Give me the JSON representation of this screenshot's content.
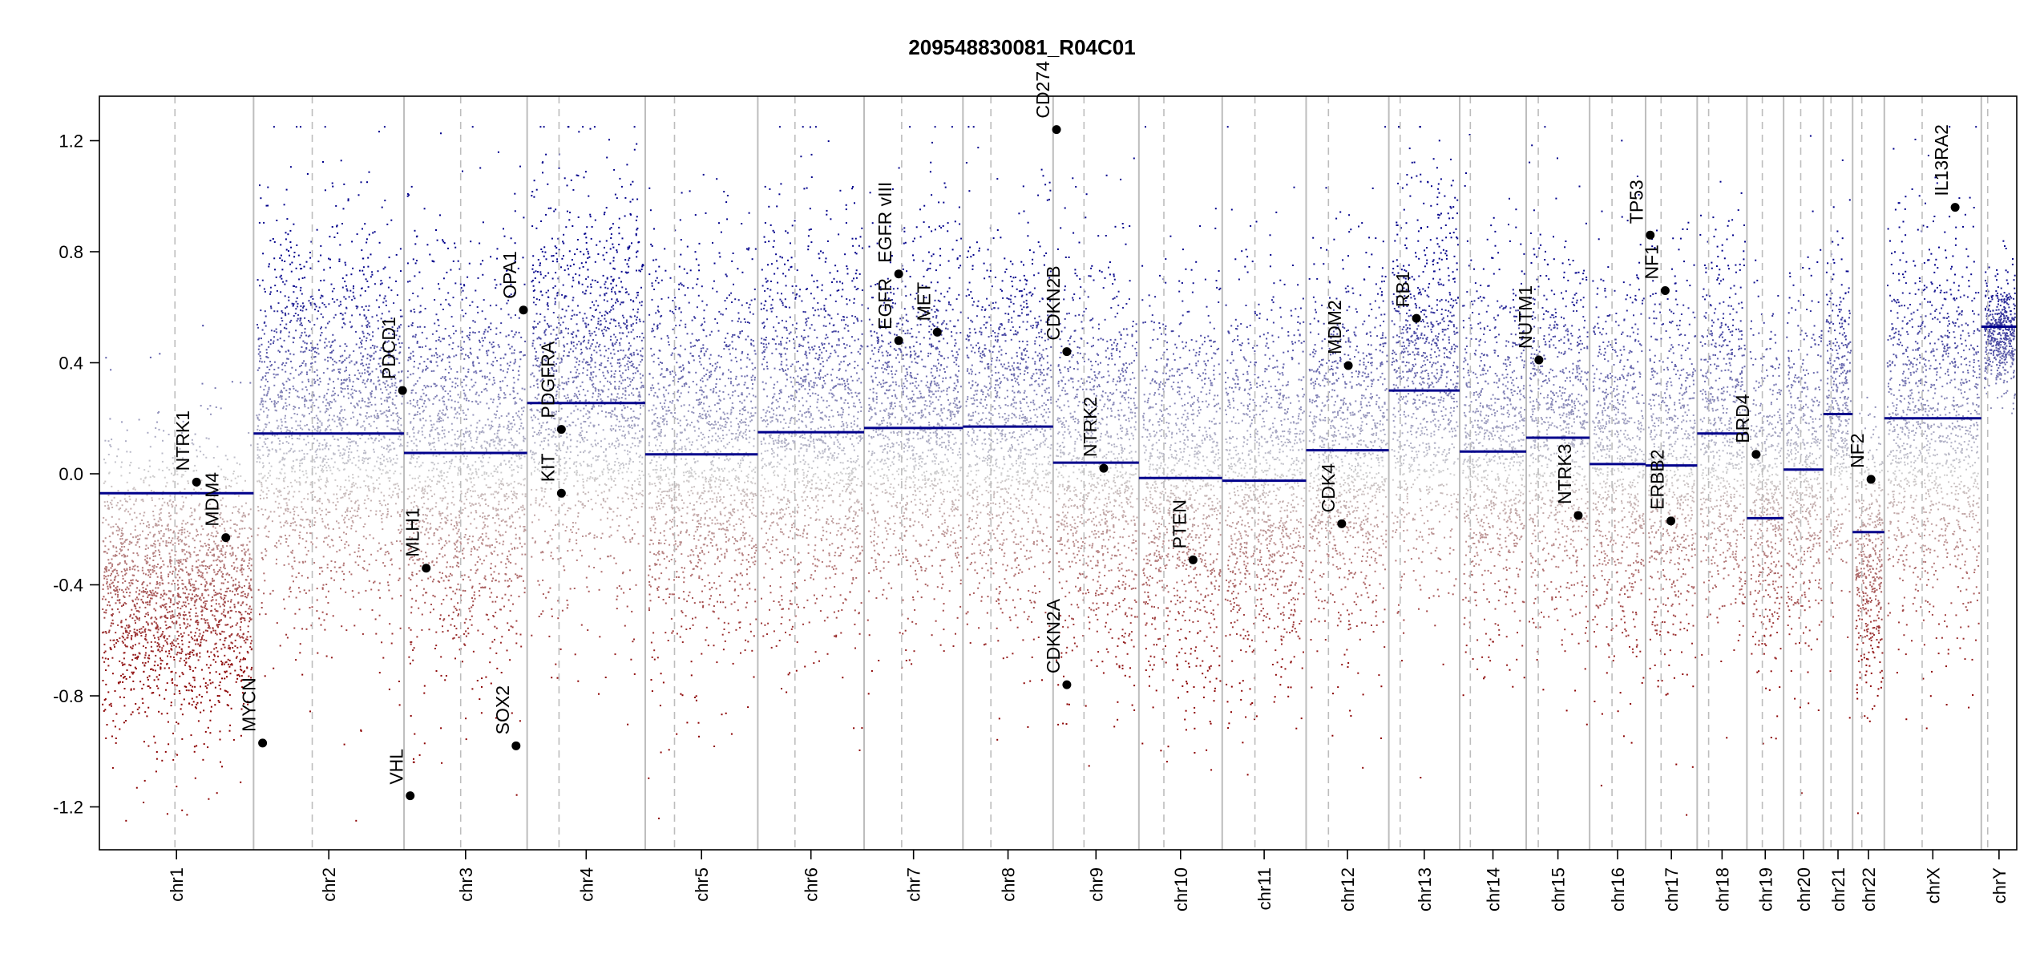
{
  "chart_data": {
    "type": "scatter",
    "title": "209548830081_R04C01",
    "xlabel": "",
    "ylabel": "",
    "ylim": [
      -1.35,
      1.35
    ],
    "yticks": [
      -1.2,
      -0.8,
      -0.4,
      0.0,
      0.4,
      0.8,
      1.2
    ],
    "ytick_labels": [
      "-1.2",
      "-0.8",
      "-0.4",
      "0.0",
      "0.4",
      "0.8",
      "1.2"
    ],
    "grid": false,
    "legend": "none",
    "colors": {
      "gain": "#00008b",
      "loss": "#8b0000",
      "neutral": "#cfcfcf",
      "segment": "#00008b",
      "gene": "#000000",
      "boundary": "#bdbdbd",
      "centromere": "#bdbdbd"
    },
    "chromosomes": [
      {
        "name": "chr1",
        "size": 248,
        "cen": 0.49
      },
      {
        "name": "chr2",
        "size": 242,
        "cen": 0.39
      },
      {
        "name": "chr3",
        "size": 198,
        "cen": 0.46
      },
      {
        "name": "chr4",
        "size": 190,
        "cen": 0.27
      },
      {
        "name": "chr5",
        "size": 181,
        "cen": 0.26
      },
      {
        "name": "chr6",
        "size": 171,
        "cen": 0.35
      },
      {
        "name": "chr7",
        "size": 159,
        "cen": 0.38
      },
      {
        "name": "chr8",
        "size": 145,
        "cen": 0.31
      },
      {
        "name": "chr9",
        "size": 138,
        "cen": 0.36
      },
      {
        "name": "chr10",
        "size": 134,
        "cen": 0.3
      },
      {
        "name": "chr11",
        "size": 135,
        "cen": 0.39
      },
      {
        "name": "chr12",
        "size": 133,
        "cen": 0.27
      },
      {
        "name": "chr13",
        "size": 114,
        "cen": 0.16
      },
      {
        "name": "chr14",
        "size": 107,
        "cen": 0.16
      },
      {
        "name": "chr15",
        "size": 102,
        "cen": 0.19
      },
      {
        "name": "chr16",
        "size": 90,
        "cen": 0.4
      },
      {
        "name": "chr17",
        "size": 83,
        "cen": 0.3
      },
      {
        "name": "chr18",
        "size": 80,
        "cen": 0.23
      },
      {
        "name": "chr19",
        "size": 59,
        "cen": 0.42
      },
      {
        "name": "chr20",
        "size": 64,
        "cen": 0.43
      },
      {
        "name": "chr21",
        "size": 47,
        "cen": 0.26
      },
      {
        "name": "chr22",
        "size": 51,
        "cen": 0.29
      },
      {
        "name": "chrX",
        "size": 156,
        "cen": 0.39
      },
      {
        "name": "chrY",
        "size": 57,
        "cen": 0.18
      }
    ],
    "segments": [
      {
        "chr": "chr1",
        "value": -0.07
      },
      {
        "chr": "chr2",
        "value": 0.145
      },
      {
        "chr": "chr3",
        "value": 0.075
      },
      {
        "chr": "chr4",
        "value": 0.255
      },
      {
        "chr": "chr5",
        "value": 0.07
      },
      {
        "chr": "chr6",
        "value": 0.15
      },
      {
        "chr": "chr7",
        "value": 0.165
      },
      {
        "chr": "chr8",
        "value": 0.17
      },
      {
        "chr": "chr9",
        "value": 0.04
      },
      {
        "chr": "chr10",
        "value": -0.015
      },
      {
        "chr": "chr11",
        "value": -0.025
      },
      {
        "chr": "chr12",
        "value": 0.085
      },
      {
        "chr": "chr13",
        "value": 0.3
      },
      {
        "chr": "chr14",
        "value": 0.08
      },
      {
        "chr": "chr15",
        "value": 0.13
      },
      {
        "chr": "chr16",
        "value": 0.035
      },
      {
        "chr": "chr17",
        "value": 0.03
      },
      {
        "chr": "chr18",
        "value": 0.145
      },
      {
        "chr": "chr19",
        "value": -0.16
      },
      {
        "chr": "chr20",
        "value": 0.015
      },
      {
        "chr": "chr21",
        "value": 0.215
      },
      {
        "chr": "chr22",
        "value": -0.21
      },
      {
        "chr": "chrX",
        "value": 0.2
      },
      {
        "chr": "chrY",
        "value": 0.53
      }
    ],
    "genes": [
      {
        "name": "NTRK1",
        "chr": "chr1",
        "pos": 0.63,
        "value": -0.03
      },
      {
        "name": "MDM4",
        "chr": "chr1",
        "pos": 0.82,
        "value": -0.23
      },
      {
        "name": "MYCN",
        "chr": "chr2",
        "pos": 0.06,
        "value": -0.97
      },
      {
        "name": "PDCD1",
        "chr": "chr2",
        "pos": 0.99,
        "value": 0.3
      },
      {
        "name": "VHL",
        "chr": "chr3",
        "pos": 0.05,
        "value": -1.16
      },
      {
        "name": "MLH1",
        "chr": "chr3",
        "pos": 0.18,
        "value": -0.34
      },
      {
        "name": "SOX2",
        "chr": "chr3",
        "pos": 0.91,
        "value": -0.98
      },
      {
        "name": "OPA1",
        "chr": "chr3",
        "pos": 0.97,
        "value": 0.59
      },
      {
        "name": "PDGFRA",
        "chr": "chr4",
        "pos": 0.29,
        "value": 0.16
      },
      {
        "name": "KIT",
        "chr": "chr4",
        "pos": 0.29,
        "value": -0.07
      },
      {
        "name": "EGFR",
        "chr": "chr7",
        "pos": 0.35,
        "value": 0.48
      },
      {
        "name": "EGFR_vIII",
        "chr": "chr7",
        "pos": 0.35,
        "value": 0.72
      },
      {
        "name": "MET",
        "chr": "chr7",
        "pos": 0.74,
        "value": 0.51
      },
      {
        "name": "CD274",
        "chr": "chr9",
        "pos": 0.04,
        "value": 1.24
      },
      {
        "name": "CDKN2B",
        "chr": "chr9",
        "pos": 0.16,
        "value": 0.44
      },
      {
        "name": "CDKN2A",
        "chr": "chr9",
        "pos": 0.16,
        "value": -0.76
      },
      {
        "name": "NTRK2",
        "chr": "chr9",
        "pos": 0.59,
        "value": 0.02
      },
      {
        "name": "PTEN",
        "chr": "chr10",
        "pos": 0.65,
        "value": -0.31
      },
      {
        "name": "CDK4",
        "chr": "chr12",
        "pos": 0.43,
        "value": -0.18
      },
      {
        "name": "MDM2",
        "chr": "chr12",
        "pos": 0.51,
        "value": 0.39
      },
      {
        "name": "RB1",
        "chr": "chr13",
        "pos": 0.39,
        "value": 0.56
      },
      {
        "name": "NUTM1",
        "chr": "chr15",
        "pos": 0.2,
        "value": 0.41
      },
      {
        "name": "NTRK3",
        "chr": "chr15",
        "pos": 0.82,
        "value": -0.15
      },
      {
        "name": "TP53",
        "chr": "chr17",
        "pos": 0.09,
        "value": 0.86
      },
      {
        "name": "NF1",
        "chr": "chr17",
        "pos": 0.38,
        "value": 0.66
      },
      {
        "name": "ERBB2",
        "chr": "chr17",
        "pos": 0.49,
        "value": -0.17
      },
      {
        "name": "BRD4",
        "chr": "chr19",
        "pos": 0.25,
        "value": 0.07
      },
      {
        "name": "NF2",
        "chr": "chr22",
        "pos": 0.58,
        "value": -0.02
      },
      {
        "name": "IL13RA2",
        "chr": "chrX",
        "pos": 0.73,
        "value": 0.96
      }
    ],
    "probe_density": {
      "chr1": [
        -0.42,
        0.25
      ],
      "chr2": [
        0.2,
        0.35
      ],
      "chr3": [
        0.05,
        0.38
      ],
      "chr4": [
        0.3,
        0.35
      ],
      "chr5": [
        0.07,
        0.35
      ],
      "chr6": [
        0.15,
        0.35
      ],
      "chr7": [
        0.17,
        0.33
      ],
      "chr8": [
        0.17,
        0.33
      ],
      "chr9": [
        0.03,
        0.35
      ],
      "chr10": [
        -0.05,
        0.35
      ],
      "chr11": [
        -0.05,
        0.35
      ],
      "chr12": [
        0.08,
        0.33
      ],
      "chr13": [
        0.32,
        0.35
      ],
      "chr14": [
        0.08,
        0.33
      ],
      "chr15": [
        0.13,
        0.33
      ],
      "chr16": [
        0.03,
        0.33
      ],
      "chr17": [
        0.03,
        0.35
      ],
      "chr18": [
        0.14,
        0.33
      ],
      "chr19": [
        -0.1,
        0.3
      ],
      "chr20": [
        0.02,
        0.3
      ],
      "chr21": [
        0.22,
        0.3
      ],
      "chr22": [
        -0.3,
        0.25
      ],
      "chrX": [
        0.15,
        0.35
      ],
      "chrY": [
        0.5,
        0.1
      ]
    }
  }
}
